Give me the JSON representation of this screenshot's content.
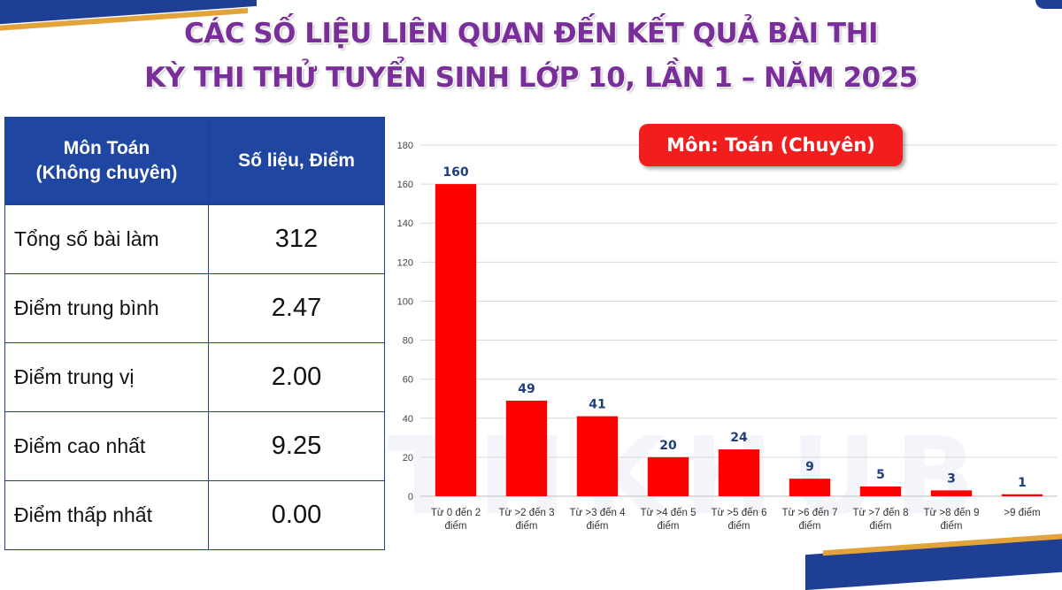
{
  "header": {
    "title_line1": "CÁC SỐ LIỆU LIÊN QUAN ĐẾN KẾT QUẢ BÀI THI",
    "title_line2": "KỲ THI THỬ TUYỂN SINH LỚP 10, LẦN 1 – NĂM 2025"
  },
  "table": {
    "header_col1_line1": "Môn Toán",
    "header_col1_line2": "(Không chuyên)",
    "header_col2": "Số liệu, Điểm",
    "rows": [
      {
        "label": "Tổng số bài làm",
        "value": "312"
      },
      {
        "label": "Điểm trung bình",
        "value": "2.47"
      },
      {
        "label": "Điểm trung vị",
        "value": "2.00"
      },
      {
        "label": "Điểm cao nhất",
        "value": "9.25"
      },
      {
        "label": "Điểm thấp nhất",
        "value": "0.00"
      }
    ]
  },
  "chart_data": {
    "type": "bar",
    "title": "Môn: Toán (Chuyên)",
    "xlabel": "",
    "ylabel": "",
    "categories": [
      [
        "Từ 0 đến 2",
        "điểm"
      ],
      [
        "Từ >2 đến 3",
        "điểm"
      ],
      [
        "Từ >3 đến 4",
        "điểm"
      ],
      [
        "Từ >4 đến 5",
        "điểm"
      ],
      [
        "Từ >5 đến 6",
        "điểm"
      ],
      [
        "Từ >6 đến 7",
        "điểm"
      ],
      [
        "Từ >7 đến 8",
        "điểm"
      ],
      [
        "Từ >8 đến 9",
        "điểm"
      ],
      [
        ">9 điểm"
      ]
    ],
    "values": [
      160,
      49,
      41,
      20,
      24,
      9,
      5,
      3,
      1
    ],
    "ylim": [
      0,
      180
    ],
    "yticks": [
      0,
      20,
      40,
      60,
      80,
      100,
      120,
      140,
      160,
      180
    ],
    "grid": true,
    "legend": "none",
    "colors": {
      "bar": "#ff0000",
      "data_label": "#1f3f7a",
      "grid": "#d9d9d9",
      "badge": "#f21d1d"
    }
  },
  "watermark": "PTHKHUB"
}
